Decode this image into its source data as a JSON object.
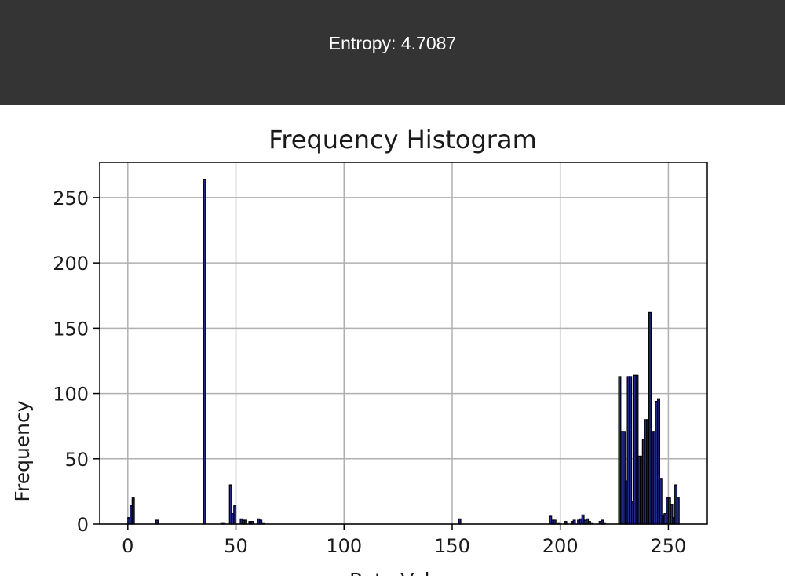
{
  "header": {
    "text": "Entropy: 4.7087"
  },
  "colors": {
    "header_bg": "#343434",
    "bar_fill": "#1f2a8c",
    "bar_edge": "#000000",
    "grid": "#b0b0b0"
  },
  "chart_data": {
    "type": "bar",
    "title": "Frequency Histogram",
    "xlabel": "Byte Value",
    "ylabel": "Frequency",
    "xlim": [
      -13,
      268
    ],
    "ylim": [
      0,
      277
    ],
    "xticks": [
      0,
      50,
      100,
      150,
      200,
      250
    ],
    "yticks": [
      0,
      50,
      100,
      150,
      200,
      250
    ],
    "grid": true,
    "bins": [
      {
        "x": 0,
        "y": 5
      },
      {
        "x": 1,
        "y": 14
      },
      {
        "x": 2,
        "y": 20
      },
      {
        "x": 13,
        "y": 3
      },
      {
        "x": 35,
        "y": 264
      },
      {
        "x": 43,
        "y": 1
      },
      {
        "x": 44,
        "y": 1
      },
      {
        "x": 47,
        "y": 30
      },
      {
        "x": 48,
        "y": 8
      },
      {
        "x": 49,
        "y": 14
      },
      {
        "x": 52,
        "y": 4
      },
      {
        "x": 53,
        "y": 3
      },
      {
        "x": 54,
        "y": 3
      },
      {
        "x": 56,
        "y": 2
      },
      {
        "x": 57,
        "y": 2
      },
      {
        "x": 60,
        "y": 4
      },
      {
        "x": 61,
        "y": 3
      },
      {
        "x": 62,
        "y": 1
      },
      {
        "x": 153,
        "y": 4
      },
      {
        "x": 195,
        "y": 6
      },
      {
        "x": 196,
        "y": 3
      },
      {
        "x": 197,
        "y": 3
      },
      {
        "x": 199,
        "y": 1
      },
      {
        "x": 202,
        "y": 2
      },
      {
        "x": 205,
        "y": 2
      },
      {
        "x": 206,
        "y": 3
      },
      {
        "x": 208,
        "y": 3
      },
      {
        "x": 209,
        "y": 4
      },
      {
        "x": 210,
        "y": 7
      },
      {
        "x": 211,
        "y": 3
      },
      {
        "x": 212,
        "y": 4
      },
      {
        "x": 213,
        "y": 2
      },
      {
        "x": 214,
        "y": 1
      },
      {
        "x": 218,
        "y": 2
      },
      {
        "x": 219,
        "y": 3
      },
      {
        "x": 220,
        "y": 1
      },
      {
        "x": 227,
        "y": 113
      },
      {
        "x": 228,
        "y": 71
      },
      {
        "x": 229,
        "y": 71
      },
      {
        "x": 230,
        "y": 33
      },
      {
        "x": 231,
        "y": 113
      },
      {
        "x": 232,
        "y": 113
      },
      {
        "x": 233,
        "y": 17
      },
      {
        "x": 234,
        "y": 114
      },
      {
        "x": 235,
        "y": 114
      },
      {
        "x": 236,
        "y": 52
      },
      {
        "x": 237,
        "y": 52
      },
      {
        "x": 238,
        "y": 65
      },
      {
        "x": 239,
        "y": 80
      },
      {
        "x": 240,
        "y": 80
      },
      {
        "x": 241,
        "y": 162
      },
      {
        "x": 242,
        "y": 71
      },
      {
        "x": 243,
        "y": 71
      },
      {
        "x": 244,
        "y": 94
      },
      {
        "x": 245,
        "y": 96
      },
      {
        "x": 246,
        "y": 35
      },
      {
        "x": 247,
        "y": 7
      },
      {
        "x": 248,
        "y": 8
      },
      {
        "x": 249,
        "y": 20
      },
      {
        "x": 250,
        "y": 20
      },
      {
        "x": 251,
        "y": 15
      },
      {
        "x": 252,
        "y": 5
      },
      {
        "x": 253,
        "y": 30
      },
      {
        "x": 254,
        "y": 20
      }
    ]
  }
}
